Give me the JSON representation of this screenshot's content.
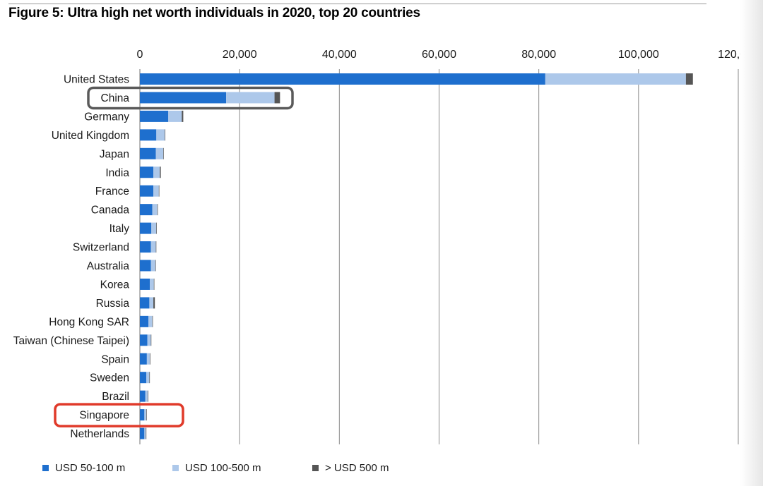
{
  "chart_data": {
    "type": "bar",
    "orientation": "horizontal",
    "stacked": true,
    "title": "Figure 5: Ultra high net worth individuals in 2020, top 20 countries",
    "xlabel": "",
    "ylabel": "",
    "xlim": [
      0,
      120000
    ],
    "ticks": [
      0,
      20000,
      40000,
      60000,
      80000,
      100000,
      120000
    ],
    "tick_labels": [
      "0",
      "20,000",
      "40,000",
      "60,000",
      "80,000",
      "100,000",
      "120,000"
    ],
    "grid": "vertical",
    "legend_position": "bottom",
    "categories": [
      "United States",
      "China",
      "Germany",
      "United Kingdom",
      "Japan",
      "India",
      "France",
      "Canada",
      "Italy",
      "Switzerland",
      "Australia",
      "Korea",
      "Russia",
      "Hong Kong SAR",
      "Taiwan (Chinese Taipei)",
      "Spain",
      "Sweden",
      "Brazil",
      "Singapore",
      "Netherlands"
    ],
    "series": [
      {
        "name": "USD 50-100 m",
        "color": "#1e6fce",
        "values": [
          81300,
          17300,
          5700,
          3300,
          3200,
          2700,
          2700,
          2500,
          2300,
          2200,
          2200,
          2000,
          1900,
          1700,
          1500,
          1400,
          1300,
          1100,
          900,
          900
        ]
      },
      {
        "name": "USD 100-500 m",
        "color": "#adc8ea",
        "values": [
          28200,
          9700,
          2700,
          1700,
          1500,
          1300,
          1100,
          1000,
          1000,
          1000,
          900,
          800,
          800,
          800,
          700,
          600,
          600,
          500,
          400,
          300
        ]
      },
      {
        "name": "> USD 500 m",
        "color": "#555555",
        "values": [
          1400,
          1100,
          300,
          100,
          100,
          200,
          100,
          100,
          100,
          100,
          100,
          100,
          300,
          100,
          100,
          100,
          100,
          100,
          100,
          100
        ]
      }
    ],
    "highlights": [
      {
        "category": "China",
        "color": "#5a5a5a"
      },
      {
        "category": "Singapore",
        "color": "#e03a2a"
      }
    ]
  }
}
